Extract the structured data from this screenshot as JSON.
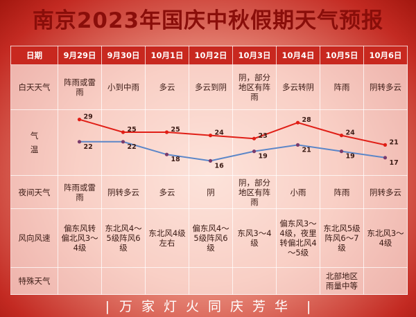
{
  "title": "南京2023年国庆中秋假期天气预报",
  "footer": {
    "bar_left": "|",
    "slogan": "万家灯火同庆芳华",
    "bar_right": "|"
  },
  "table": {
    "corner_label": "日期",
    "dates": [
      "9月29日",
      "9月30日",
      "10月1日",
      "10月2日",
      "10月3日",
      "10月4日",
      "10月5日",
      "10月6日"
    ],
    "rows": [
      {
        "label": "白天天气",
        "cells": [
          "阵雨或雷雨",
          "小到中雨",
          "多云",
          "多云到阴",
          "阴，部分地区有阵雨",
          "多云转阴",
          "阵雨",
          "阴转多云"
        ]
      },
      {
        "label": "气温",
        "cells": [
          "",
          "",
          "",
          "",
          "",
          "",
          "",
          ""
        ]
      },
      {
        "label": "夜间天气",
        "cells": [
          "阵雨或雷雨",
          "阴转多云",
          "多云",
          "阴",
          "阴，部分地区有阵雨",
          "小雨",
          "阵雨",
          "阴转多云"
        ]
      },
      {
        "label": "风向风速",
        "cells": [
          "偏东风转偏北风3～4级",
          "东北风4～5级阵风6级",
          "东北风4级左右",
          "偏东风4～5级阵风6级",
          "东风3～4级",
          "偏东风3～4级，夜里转偏北风4～5级",
          "东北风5级阵风6～7级",
          "东北风3～4级"
        ]
      },
      {
        "label": "特殊天气",
        "cells": [
          "",
          "",
          "",
          "",
          "",
          "",
          "北部地区雨量中等",
          ""
        ]
      }
    ]
  },
  "chart_data": {
    "type": "line",
    "x": [
      "9月29日",
      "9月30日",
      "10月1日",
      "10月2日",
      "10月3日",
      "10月4日",
      "10月5日",
      "10月6日"
    ],
    "series": [
      {
        "values": [
          29,
          25,
          25,
          24,
          23,
          28,
          24,
          21
        ],
        "color": "#e01e16"
      },
      {
        "values": [
          22,
          22,
          18,
          16,
          19,
          21,
          19,
          17
        ],
        "color": "#5b86c8"
      }
    ],
    "ylim": [
      15,
      30
    ]
  }
}
